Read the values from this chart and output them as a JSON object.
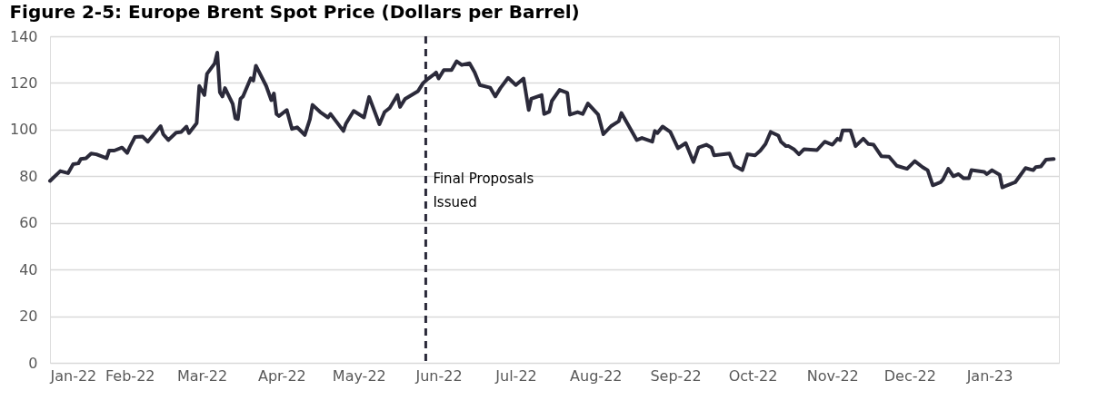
{
  "chart_data": {
    "type": "line",
    "title": "Figure 2-5: Europe Brent Spot Price (Dollars per Barrel)",
    "x": [
      "2022-01-01",
      "2022-01-05",
      "2022-01-08",
      "2022-01-10",
      "2022-01-12",
      "2022-01-13",
      "2022-01-15",
      "2022-01-17",
      "2022-01-19",
      "2022-01-23",
      "2022-01-24",
      "2022-01-26",
      "2022-01-29",
      "2022-01-31",
      "2022-02-01",
      "2022-02-03",
      "2022-02-06",
      "2022-02-08",
      "2022-02-13",
      "2022-02-14",
      "2022-02-16",
      "2022-02-19",
      "2022-02-21",
      "2022-02-23",
      "2022-02-24",
      "2022-02-27",
      "2022-02-28",
      "2022-03-02",
      "2022-03-03",
      "2022-03-06",
      "2022-03-07",
      "2022-03-08",
      "2022-03-09",
      "2022-03-10",
      "2022-03-13",
      "2022-03-14",
      "2022-03-15",
      "2022-03-16",
      "2022-03-17",
      "2022-03-20",
      "2022-03-21",
      "2022-03-22",
      "2022-03-26",
      "2022-03-28",
      "2022-03-29",
      "2022-03-30",
      "2022-03-31",
      "2022-04-03",
      "2022-04-05",
      "2022-04-07",
      "2022-04-10",
      "2022-04-12",
      "2022-04-13",
      "2022-04-16",
      "2022-04-19",
      "2022-04-20",
      "2022-04-25",
      "2022-04-26",
      "2022-04-29",
      "2022-05-03",
      "2022-05-05",
      "2022-05-09",
      "2022-05-11",
      "2022-05-13",
      "2022-05-16",
      "2022-05-17",
      "2022-05-19",
      "2022-05-24",
      "2022-05-26",
      "2022-05-28",
      "2022-05-30",
      "2022-05-31",
      "2022-06-01",
      "2022-06-03",
      "2022-06-06",
      "2022-06-08",
      "2022-06-10",
      "2022-06-13",
      "2022-06-15",
      "2022-06-17",
      "2022-06-21",
      "2022-06-23",
      "2022-06-25",
      "2022-06-28",
      "2022-07-01",
      "2022-07-04",
      "2022-07-06",
      "2022-07-07",
      "2022-07-11",
      "2022-07-12",
      "2022-07-14",
      "2022-07-15",
      "2022-07-18",
      "2022-07-21",
      "2022-07-22",
      "2022-07-25",
      "2022-07-27",
      "2022-07-29",
      "2022-08-02",
      "2022-08-04",
      "2022-08-07",
      "2022-08-10",
      "2022-08-11",
      "2022-08-17",
      "2022-08-19",
      "2022-08-23",
      "2022-08-24",
      "2022-08-25",
      "2022-08-27",
      "2022-08-30",
      "2022-09-02",
      "2022-09-05",
      "2022-09-08",
      "2022-09-10",
      "2022-09-13",
      "2022-09-15",
      "2022-09-16",
      "2022-09-22",
      "2022-09-24",
      "2022-09-27",
      "2022-09-29",
      "2022-10-02",
      "2022-10-04",
      "2022-10-06",
      "2022-10-08",
      "2022-10-11",
      "2022-10-12",
      "2022-10-14",
      "2022-10-15",
      "2022-10-17",
      "2022-10-19",
      "2022-10-21",
      "2022-10-26",
      "2022-10-29",
      "2022-11-01",
      "2022-11-03",
      "2022-11-04",
      "2022-11-05",
      "2022-11-08",
      "2022-11-10",
      "2022-11-13",
      "2022-11-15",
      "2022-11-17",
      "2022-11-20",
      "2022-11-23",
      "2022-11-26",
      "2022-11-30",
      "2022-12-03",
      "2022-12-06",
      "2022-12-08",
      "2022-12-10",
      "2022-12-13",
      "2022-12-14",
      "2022-12-16",
      "2022-12-18",
      "2022-12-20",
      "2022-12-22",
      "2022-12-24",
      "2022-12-25",
      "2022-12-30",
      "2022-12-31",
      "2023-01-02",
      "2023-01-05",
      "2023-01-06",
      "2023-01-07",
      "2023-01-11",
      "2023-01-13",
      "2023-01-15",
      "2023-01-18",
      "2023-01-19",
      "2023-01-21",
      "2023-01-23",
      "2023-01-26"
    ],
    "series": [
      {
        "color": "#2b2a3a",
        "values": [
          78,
          82.2,
          81.3,
          85.2,
          85.5,
          87.4,
          87.7,
          89.7,
          89.4,
          87.7,
          91,
          91,
          92.3,
          90,
          92.5,
          96.8,
          97,
          94.8,
          101.5,
          98,
          95.5,
          98.7,
          99,
          101.3,
          98.5,
          102.8,
          118.7,
          114.8,
          123.9,
          128.4,
          133,
          116,
          114.2,
          117.8,
          111,
          104.9,
          104.5,
          113.2,
          114.2,
          122,
          121,
          127.4,
          118.7,
          112.6,
          115.5,
          106.7,
          105.8,
          108.4,
          100.3,
          101,
          97.7,
          104.5,
          110.6,
          107.5,
          105.2,
          106.7,
          99.4,
          102.6,
          108,
          105.2,
          114,
          102.3,
          107.5,
          109.3,
          114.8,
          109.7,
          113.2,
          116.5,
          120,
          121.9,
          123.5,
          124.5,
          121.9,
          125.5,
          125.5,
          129.3,
          127.7,
          128.4,
          124.5,
          119.1,
          118,
          114.2,
          117.8,
          122.2,
          119.1,
          121.9,
          108.4,
          113.2,
          114.8,
          106.7,
          107.7,
          112.3,
          117,
          115.7,
          106.4,
          107.5,
          106.7,
          111.2,
          106.4,
          98,
          101.5,
          103.6,
          107.1,
          95.5,
          96.4,
          94.8,
          99.4,
          98.5,
          101.3,
          99,
          92,
          94.2,
          86.1,
          92.3,
          93.5,
          92.3,
          89,
          89.7,
          84.5,
          82.6,
          89.4,
          89,
          91,
          93.8,
          99,
          97.4,
          94.8,
          92.9,
          92.9,
          91.6,
          89.4,
          91.6,
          91.2,
          94.8,
          93.5,
          96.1,
          95.5,
          99.7,
          99.7,
          92.9,
          96.1,
          93.8,
          93.5,
          88.6,
          88.4,
          84.5,
          83.2,
          86.5,
          83.9,
          82.6,
          76.1,
          77.4,
          78.7,
          83.2,
          80,
          80.9,
          79.1,
          79.1,
          82.6,
          81.9,
          80.9,
          82.6,
          80.6,
          75.2,
          75.7,
          77.4,
          80.4,
          83.5,
          82.6,
          83.9,
          84.2,
          87.1,
          87.4
        ]
      }
    ],
    "xlim": [
      "2022-01-01",
      "2023-01-28"
    ],
    "xticks": [
      {
        "value": "2022-01-01",
        "label": "Jan-22"
      },
      {
        "value": "2022-02-01",
        "label": "Feb-22"
      },
      {
        "value": "2022-03-01",
        "label": "Mar-22"
      },
      {
        "value": "2022-04-01",
        "label": "Apr-22"
      },
      {
        "value": "2022-05-01",
        "label": "May-22"
      },
      {
        "value": "2022-06-01",
        "label": "Jun-22"
      },
      {
        "value": "2022-07-01",
        "label": "Jul-22"
      },
      {
        "value": "2022-08-01",
        "label": "Aug-22"
      },
      {
        "value": "2022-09-01",
        "label": "Sep-22"
      },
      {
        "value": "2022-10-01",
        "label": "Oct-22"
      },
      {
        "value": "2022-11-01",
        "label": "Nov-22"
      },
      {
        "value": "2022-12-01",
        "label": "Dec-22"
      },
      {
        "value": "2023-01-01",
        "label": "Jan-23"
      }
    ],
    "ylim": [
      0,
      140
    ],
    "yticks": [
      0,
      20,
      40,
      60,
      80,
      100,
      120,
      140
    ],
    "grid": "y",
    "line_style": "solid",
    "marker": "none",
    "ref_lines": [
      {
        "axis": "x",
        "value": "2022-05-27",
        "label": "Final Proposals Issued",
        "color": "#2b2a3a",
        "line_style": "dashed"
      }
    ]
  }
}
